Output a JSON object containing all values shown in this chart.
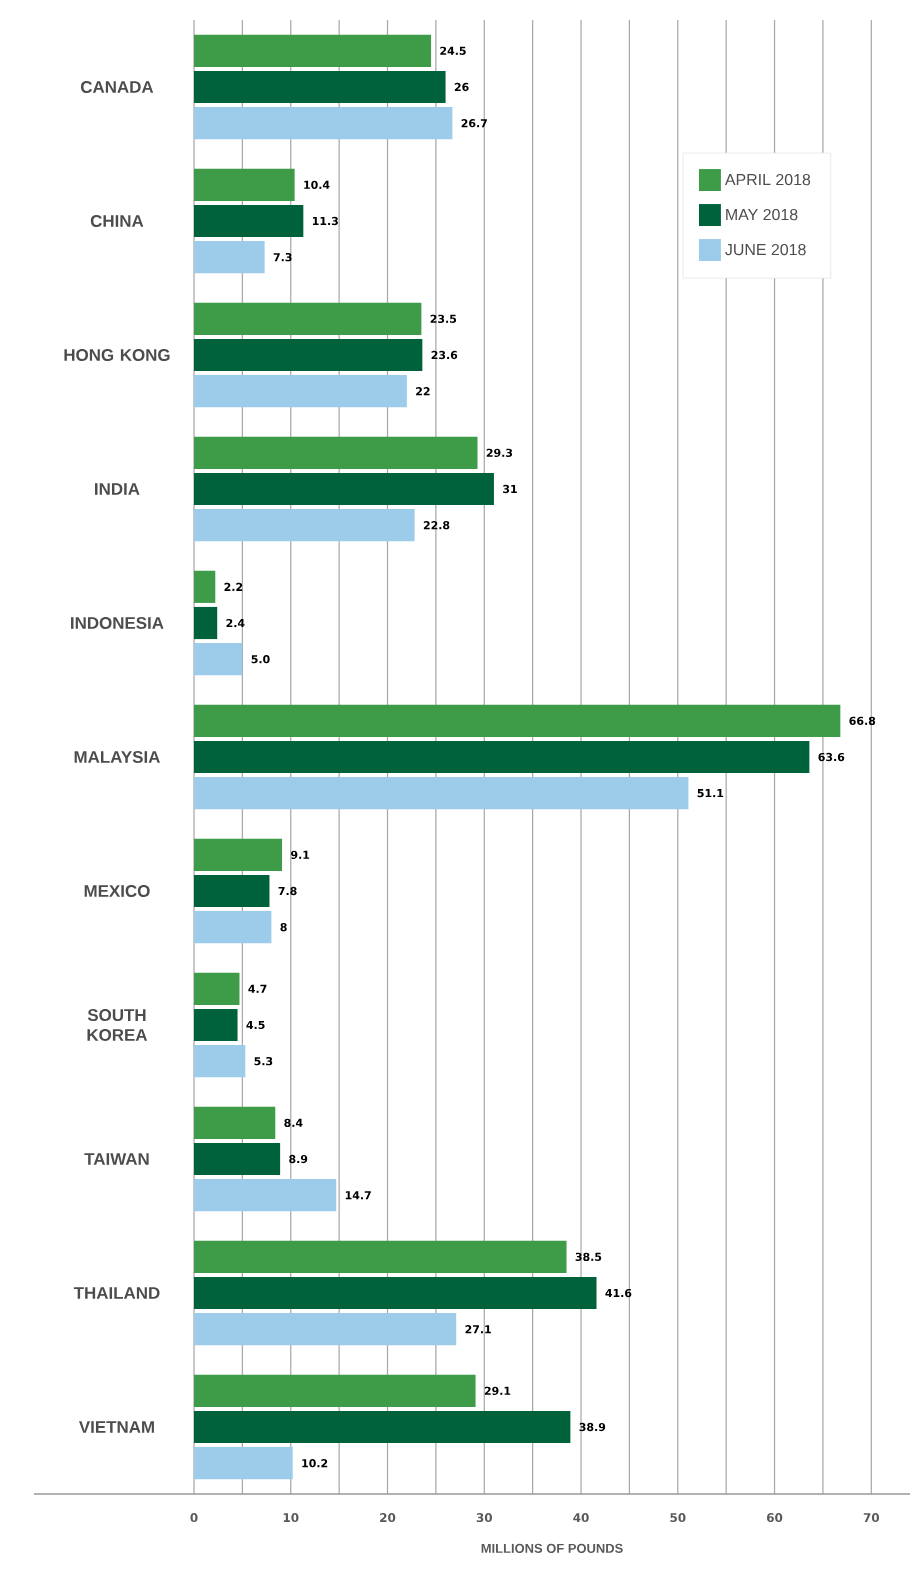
{
  "chart_data": {
    "type": "bar",
    "orientation": "horizontal",
    "xlabel": "MILLIONS OF POUNDS",
    "categories": [
      "CANADA",
      "CHINA",
      "HONG KONG",
      "INDIA",
      "INDONESIA",
      "MALAYSIA",
      "MEXICO",
      "SOUTH KOREA",
      "TAIWAN",
      "THAILAND",
      "VIETNAM"
    ],
    "series": [
      {
        "name": "APRIL 2018",
        "color": "#3e9b47",
        "values": [
          24.5,
          10.4,
          23.5,
          29.3,
          2.2,
          66.8,
          9.1,
          4.7,
          8.4,
          38.5,
          29.1
        ],
        "value_labels": [
          "24.5",
          "10.4",
          "23.5",
          "29.3",
          "2.2",
          "66.8",
          "9.1",
          "4.7",
          "8.4",
          "38.5",
          "29.1"
        ]
      },
      {
        "name": "MAY 2018",
        "color": "#00623b",
        "values": [
          26,
          11.3,
          23.6,
          31,
          2.4,
          63.6,
          7.8,
          4.5,
          8.9,
          41.6,
          38.9
        ],
        "value_labels": [
          "26",
          "11.3",
          "23.6",
          "31",
          "2.4",
          "63.6",
          "7.8",
          "4.5",
          "8.9",
          "41.6",
          "38.9"
        ]
      },
      {
        "name": "JUNE 2018",
        "color": "#9dcbea",
        "values": [
          26.7,
          7.3,
          22,
          22.8,
          5.0,
          51.1,
          8,
          5.3,
          14.7,
          27.1,
          10.2
        ],
        "value_labels": [
          "26.7",
          "7.3",
          "22",
          "22.8",
          "5.0",
          "51.1",
          "8",
          "5.3",
          "14.7",
          "27.1",
          "10.2"
        ]
      }
    ],
    "xlim": [
      0,
      74
    ],
    "xticks": [
      0,
      {
        "value": 5,
        "label": null
      },
      10,
      {
        "value": 15,
        "label": null
      },
      20,
      {
        "value": 25,
        "label": null
      },
      30,
      {
        "value": 35,
        "label": null
      },
      40,
      {
        "value": 45,
        "label": null
      },
      50,
      {
        "value": 55,
        "label": null
      },
      60,
      {
        "value": 65,
        "label": null
      },
      70
    ],
    "grid": "x",
    "legend": "top right"
  }
}
